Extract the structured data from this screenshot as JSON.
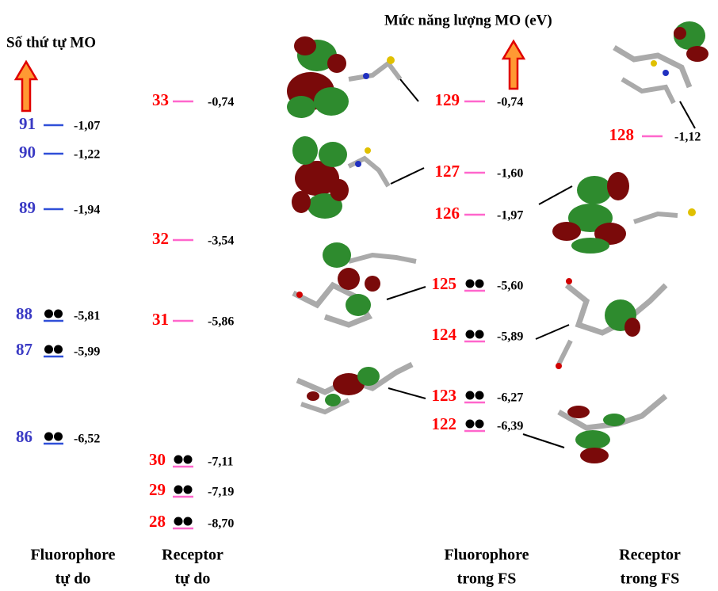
{
  "header": {
    "left_title": "Số thứ tự MO",
    "right_title": "Mức năng lượng MO (eV)"
  },
  "columns": [
    {
      "label_line1": "Fluorophore",
      "label_line2": "tự do",
      "number_color": "#3a3ac4",
      "line_color": "#2f4fd8",
      "levels": [
        {
          "number": 91,
          "energy": "-1,07",
          "occupied": false
        },
        {
          "number": 90,
          "energy": "-1,22",
          "occupied": false
        },
        {
          "number": 89,
          "energy": "-1,94",
          "occupied": false
        },
        {
          "number": 88,
          "energy": "-5,81",
          "occupied": true
        },
        {
          "number": 87,
          "energy": "-5,99",
          "occupied": true
        },
        {
          "number": 86,
          "energy": "-6,52",
          "occupied": true
        }
      ]
    },
    {
      "label_line1": "Receptor",
      "label_line2": "tự do",
      "number_color": "#ff0000",
      "line_color": "#ff66cc",
      "levels": [
        {
          "number": 33,
          "energy": "-0,74",
          "occupied": false
        },
        {
          "number": 32,
          "energy": "-3,54",
          "occupied": false
        },
        {
          "number": 31,
          "energy": "-5,86",
          "occupied": false
        },
        {
          "number": 30,
          "energy": "-7,11",
          "occupied": true
        },
        {
          "number": 29,
          "energy": "-7,19",
          "occupied": true
        },
        {
          "number": 28,
          "energy": "-8,70",
          "occupied": true
        }
      ]
    },
    {
      "label_line1": "Fluorophore",
      "label_line2": "trong FS",
      "number_color": "#ff0000",
      "line_color": "#ff66cc",
      "levels": [
        {
          "number": 129,
          "energy": "-0,74",
          "occupied": false
        },
        {
          "number": 127,
          "energy": "-1,60",
          "occupied": false
        },
        {
          "number": 126,
          "energy": "-1,97",
          "occupied": false
        },
        {
          "number": 125,
          "energy": "-5,60",
          "occupied": true
        },
        {
          "number": 124,
          "energy": "-5,89",
          "occupied": true
        },
        {
          "number": 123,
          "energy": "-6,27",
          "occupied": true
        },
        {
          "number": 122,
          "energy": "-6,39",
          "occupied": true
        }
      ]
    },
    {
      "label_line1": "Receptor",
      "label_line2": "trong FS",
      "number_color": "#ff0000",
      "line_color": "#ff66cc",
      "levels": [
        {
          "number": 128,
          "energy": "-1,12",
          "occupied": false
        }
      ]
    }
  ]
}
